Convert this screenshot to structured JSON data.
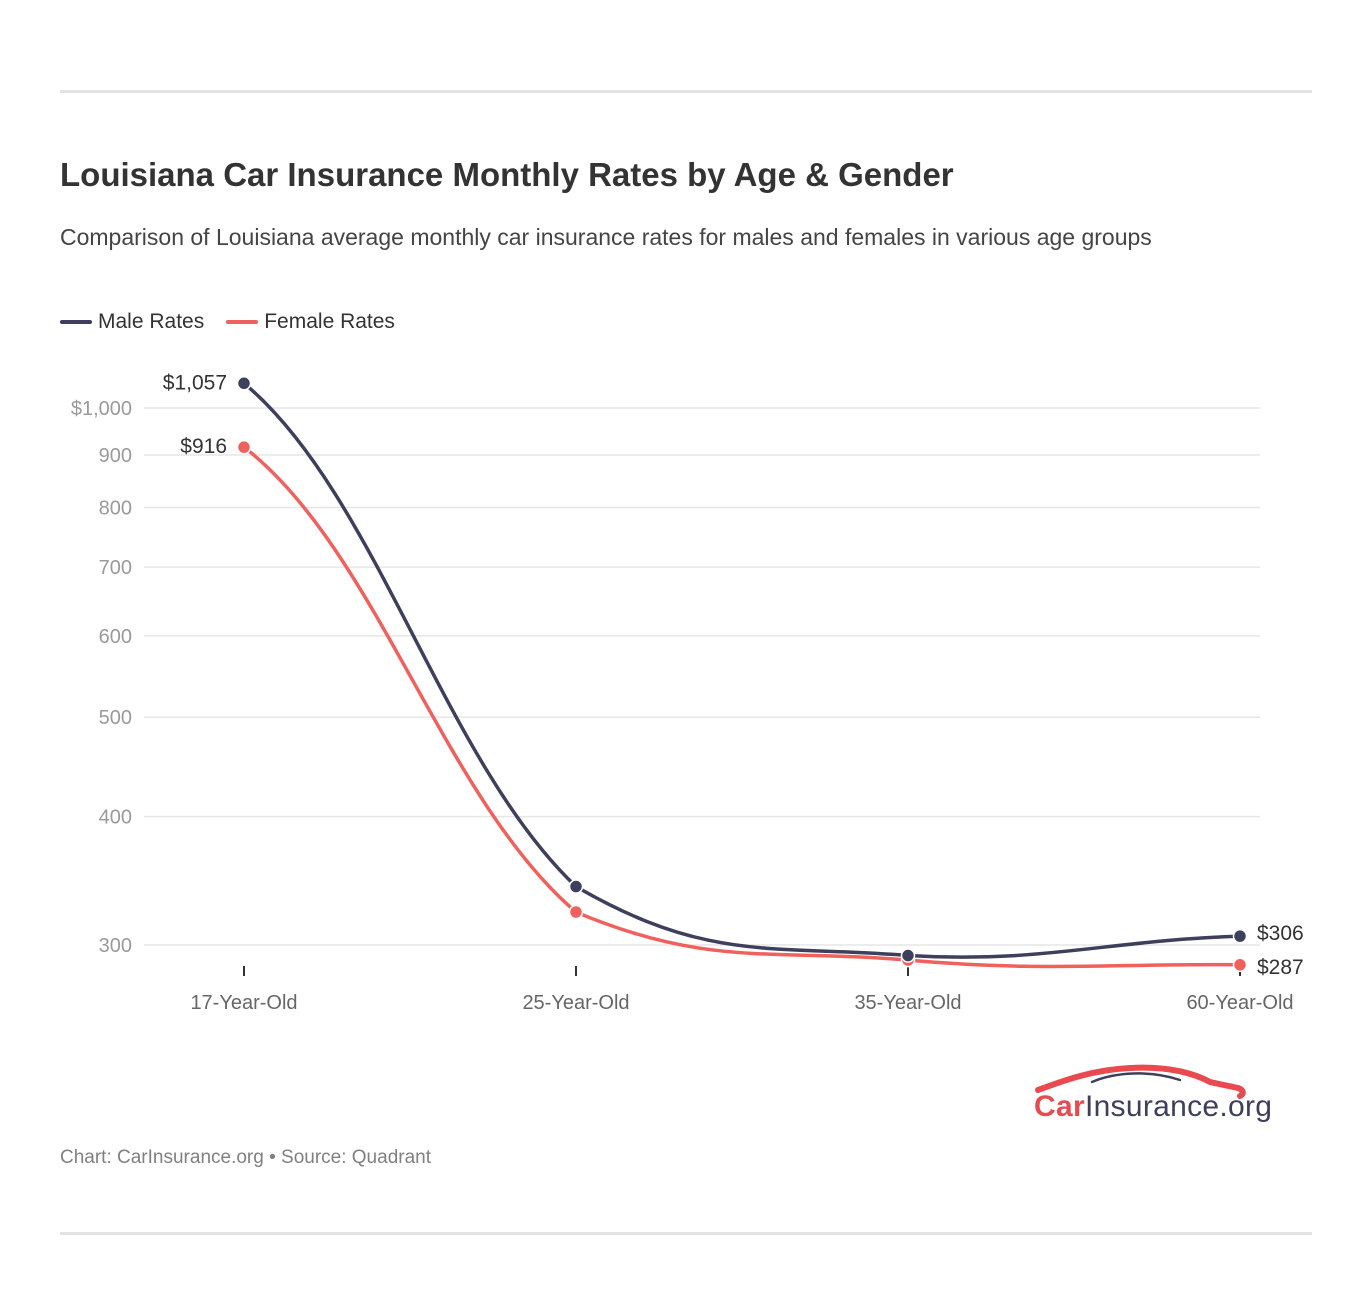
{
  "title": "Louisiana Car Insurance Monthly Rates by Age & Gender",
  "subtitle": "Comparison of Louisiana average monthly car insurance rates for males and females in various age groups",
  "legend": {
    "male": "Male Rates",
    "female": "Female Rates"
  },
  "colors": {
    "male": "#3d3f5c",
    "female": "#f0605d",
    "grid": "#e6e6e6",
    "tick_label": "#9a9a9a"
  },
  "chart_data": {
    "type": "line",
    "title": "Louisiana Car Insurance Monthly Rates by Age & Gender",
    "xlabel": "",
    "ylabel": "",
    "y_scale": "log",
    "categories": [
      "17-Year-Old",
      "25-Year-Old",
      "35-Year-Old",
      "60-Year-Old"
    ],
    "series": [
      {
        "name": "Male Rates",
        "values": [
          1057,
          342,
          293,
          306
        ]
      },
      {
        "name": "Female Rates",
        "values": [
          916,
          323,
          290,
          287
        ]
      }
    ],
    "data_labels": {
      "male_first": "$1,057",
      "female_first": "$916",
      "male_last": "$306",
      "female_last": "$287"
    },
    "y_ticks": [
      {
        "value": 1000,
        "label": "$1,000"
      },
      {
        "value": 900,
        "label": "900"
      },
      {
        "value": 800,
        "label": "800"
      },
      {
        "value": 700,
        "label": "700"
      },
      {
        "value": 600,
        "label": "600"
      },
      {
        "value": 500,
        "label": "500"
      },
      {
        "value": 400,
        "label": "400"
      },
      {
        "value": 300,
        "label": "300"
      }
    ],
    "grid": true,
    "legend_position": "top-left"
  },
  "footer": {
    "credit": "Chart: CarInsurance.org • Source: Quadrant"
  },
  "logo": {
    "brand": "Car",
    "rest": "Insurance.org"
  }
}
